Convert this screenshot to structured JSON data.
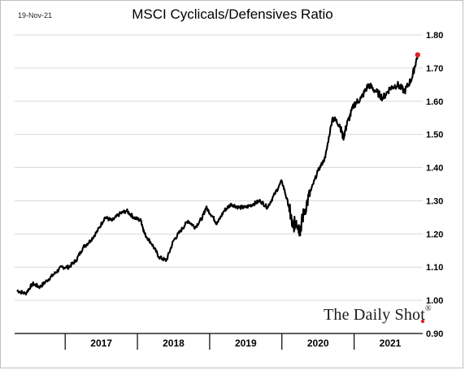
{
  "date_label": "19-Nov-21",
  "watermark": {
    "text": "The Daily Shot",
    "mark": "®"
  },
  "chart_data": {
    "type": "line",
    "title": "MSCI Cyclicals/Defensives Ratio",
    "xlabel": "",
    "ylabel": "",
    "ylim": [
      0.9,
      1.8
    ],
    "yticks": [
      "1.80",
      "1.70",
      "1.60",
      "1.50",
      "1.40",
      "1.30",
      "1.20",
      "1.10",
      "1.00",
      "0.90"
    ],
    "xlim": [
      2016.3,
      2021.95
    ],
    "year_labels": [
      "2017",
      "2018",
      "2019",
      "2020",
      "2021"
    ],
    "grid": "horizontal",
    "line_color": "#000000",
    "marker_color": "#e02020",
    "x": [
      2016.33,
      2016.45,
      2016.55,
      2016.65,
      2016.75,
      2016.85,
      2016.95,
      2017.05,
      2017.15,
      2017.25,
      2017.35,
      2017.45,
      2017.55,
      2017.65,
      2017.75,
      2017.85,
      2017.95,
      2018.05,
      2018.1,
      2018.2,
      2018.3,
      2018.4,
      2018.5,
      2018.6,
      2018.7,
      2018.8,
      2018.9,
      2018.95,
      2019.05,
      2019.1,
      2019.2,
      2019.3,
      2019.4,
      2019.5,
      2019.6,
      2019.7,
      2019.8,
      2019.9,
      2020.0,
      2020.1,
      2020.15,
      2020.2,
      2020.25,
      2020.3,
      2020.4,
      2020.5,
      2020.6,
      2020.7,
      2020.8,
      2020.85,
      2020.9,
      2021.0,
      2021.1,
      2021.2,
      2021.3,
      2021.4,
      2021.5,
      2021.6,
      2021.7,
      2021.8,
      2021.88
    ],
    "values": [
      1.03,
      1.02,
      1.05,
      1.04,
      1.06,
      1.08,
      1.1,
      1.1,
      1.12,
      1.16,
      1.18,
      1.21,
      1.25,
      1.24,
      1.26,
      1.27,
      1.25,
      1.24,
      1.2,
      1.17,
      1.13,
      1.12,
      1.18,
      1.21,
      1.24,
      1.22,
      1.25,
      1.28,
      1.25,
      1.23,
      1.27,
      1.29,
      1.28,
      1.28,
      1.29,
      1.3,
      1.28,
      1.32,
      1.36,
      1.28,
      1.22,
      1.24,
      1.21,
      1.26,
      1.33,
      1.39,
      1.43,
      1.55,
      1.53,
      1.49,
      1.53,
      1.59,
      1.61,
      1.65,
      1.63,
      1.61,
      1.64,
      1.65,
      1.63,
      1.67,
      1.74
    ]
  }
}
